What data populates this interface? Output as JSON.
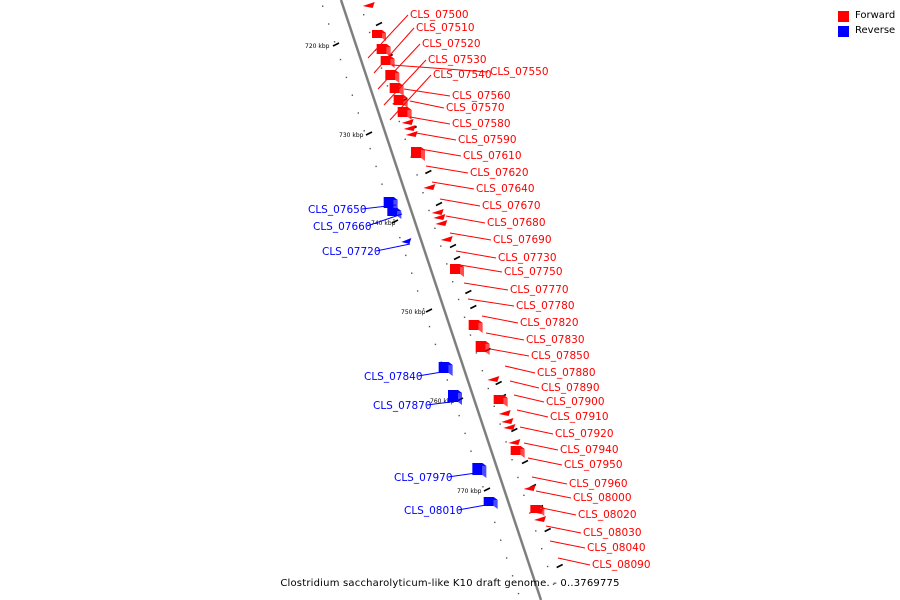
{
  "caption": "Clostridium saccharolyticum-like K10 draft genome. - 0..3769775",
  "legend": {
    "forward_label": "Forward",
    "reverse_label": "Reverse",
    "forward_color": "#ff0000",
    "reverse_color": "#0000ff"
  },
  "backbone_color": "#7f7f7f",
  "ticks": [
    "720 kbp",
    "730 kbp",
    "740 kbp",
    "750 kbp",
    "760 kbp",
    "770 kbp"
  ],
  "forward_genes": [
    "CLS_07500",
    "CLS_07510",
    "CLS_07520",
    "CLS_07530",
    "CLS_07540",
    "CLS_07550",
    "CLS_07560",
    "CLS_07570",
    "CLS_07580",
    "CLS_07590",
    "CLS_07610",
    "CLS_07620",
    "CLS_07640",
    "CLS_07670",
    "CLS_07680",
    "CLS_07690",
    "CLS_07730",
    "CLS_07750",
    "CLS_07770",
    "CLS_07780",
    "CLS_07820",
    "CLS_07830",
    "CLS_07850",
    "CLS_07880",
    "CLS_07890",
    "CLS_07900",
    "CLS_07910",
    "CLS_07920",
    "CLS_07940",
    "CLS_07950",
    "CLS_07960",
    "CLS_08000",
    "CLS_08020",
    "CLS_08030",
    "CLS_08040",
    "CLS_08090"
  ],
  "reverse_genes": [
    "CLS_07650",
    "CLS_07660",
    "CLS_07720",
    "CLS_07840",
    "CLS_07870",
    "CLS_07970",
    "CLS_08010"
  ]
}
